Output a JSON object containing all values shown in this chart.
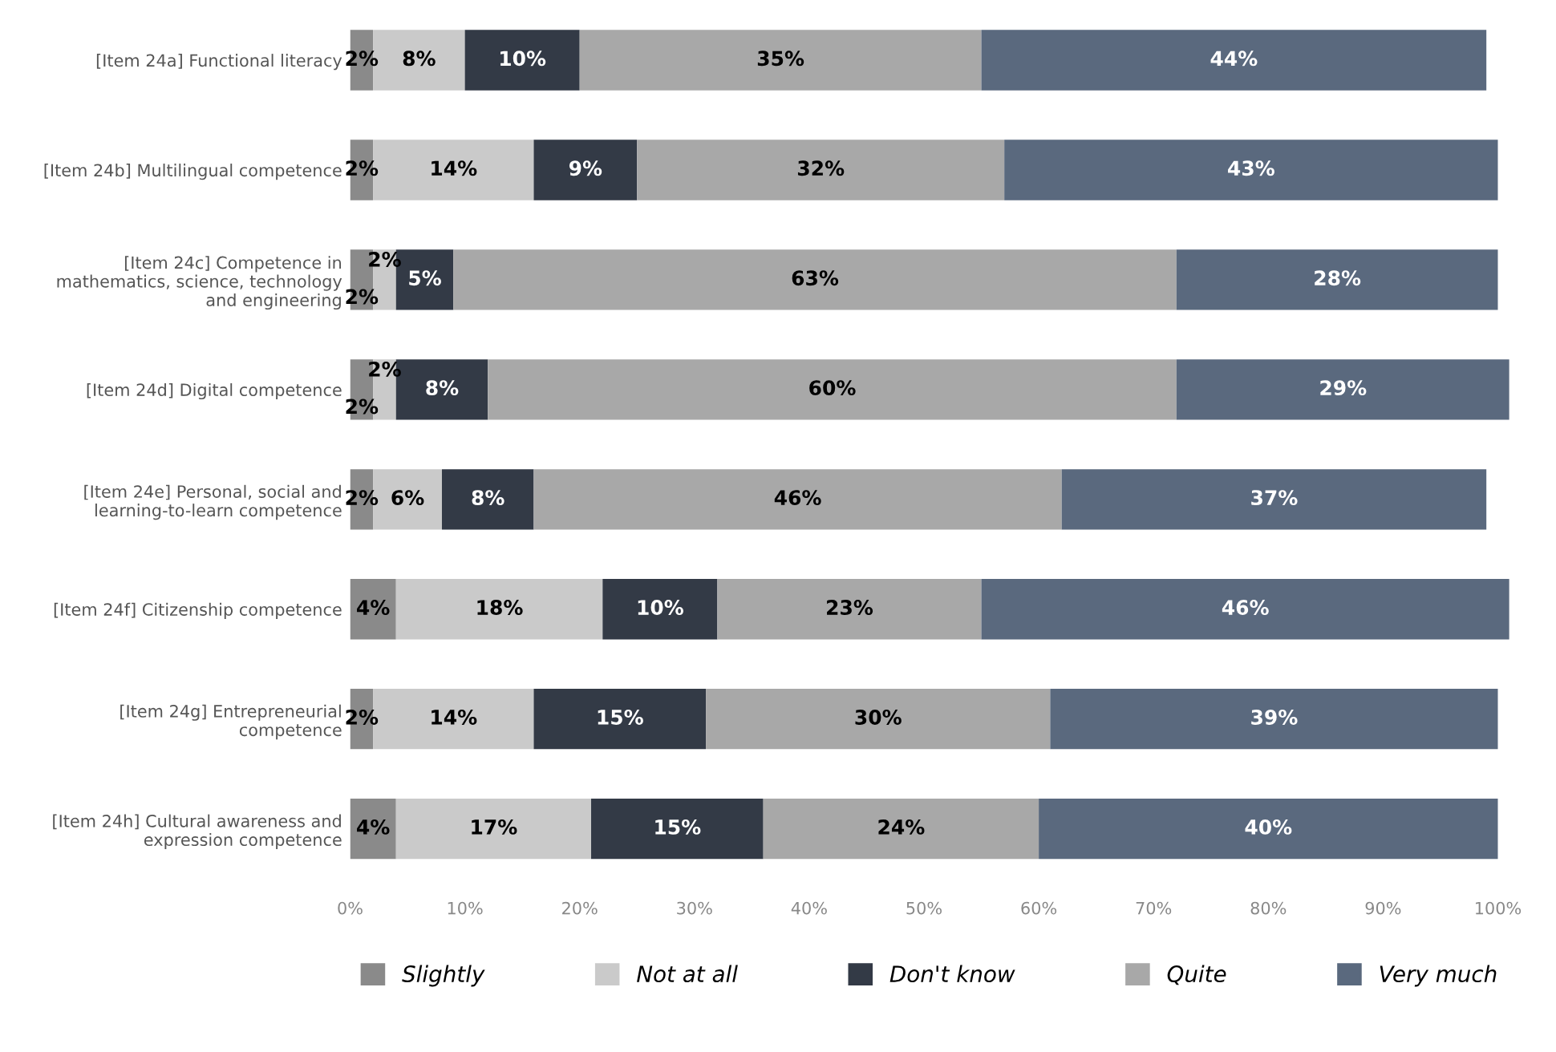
{
  "chart_data": {
    "type": "bar",
    "orientation": "horizontal",
    "stacked": true,
    "legend": "bottom",
    "grid": false,
    "categories": [
      "[Item 24a] Functional literacy",
      "[Item 24b] Multilingual competence",
      "[Item 24c] Competence in\nmathematics, science, technology\nand engineering",
      "[Item 24d] Digital competence",
      "[Item 24e] Personal, social and\nlearning-to-learn competence",
      "[Item 24f] Citizenship competence",
      "[Item 24g] Entrepreneurial\ncompetence",
      "[Item 24h] Cultural awareness and\nexpression competence"
    ],
    "xlim": [
      0,
      101
    ],
    "xticks": [
      {
        "value": 0,
        "label": "0%"
      },
      {
        "value": 10,
        "label": "10%"
      },
      {
        "value": 20,
        "label": "20%"
      },
      {
        "value": 30,
        "label": "30%"
      },
      {
        "value": 40,
        "label": "40%"
      },
      {
        "value": 50,
        "label": "50%"
      },
      {
        "value": 60,
        "label": "60%"
      },
      {
        "value": 70,
        "label": "70%"
      },
      {
        "value": 80,
        "label": "80%"
      },
      {
        "value": 90,
        "label": "90%"
      },
      {
        "value": 100,
        "label": "100%"
      }
    ],
    "series": [
      {
        "name": "Slightly",
        "color": "#8a8a8a",
        "values": [
          2,
          2,
          2,
          2,
          2,
          4,
          2,
          4
        ],
        "value_labels": [
          "2%",
          "2%",
          "2%",
          "2%",
          "2%",
          "4%",
          "2%",
          "4%"
        ]
      },
      {
        "name": "Not at all",
        "color": "#cacaca",
        "values": [
          8,
          14,
          2,
          2,
          6,
          18,
          14,
          17
        ],
        "value_labels": [
          "8%",
          "14%",
          "2%",
          "2%",
          "6%",
          "18%",
          "14%",
          "17%"
        ]
      },
      {
        "name": "Don't know",
        "color": "#333a46",
        "values": [
          10,
          9,
          5,
          8,
          8,
          10,
          15,
          15
        ],
        "value_labels": [
          "10%",
          "9%",
          "5%",
          "8%",
          "8%",
          "10%",
          "15%",
          "15%"
        ]
      },
      {
        "name": "Quite",
        "color": "#a8a8a8",
        "values": [
          35,
          32,
          63,
          60,
          46,
          23,
          30,
          24
        ],
        "value_labels": [
          "35%",
          "32%",
          "63%",
          "60%",
          "46%",
          "23%",
          "30%",
          "24%"
        ]
      },
      {
        "name": "Very much",
        "color": "#5a697e",
        "values": [
          44,
          43,
          28,
          29,
          37,
          46,
          39,
          40
        ],
        "value_labels": [
          "44%",
          "43%",
          "28%",
          "29%",
          "37%",
          "46%",
          "39%",
          "40%"
        ]
      }
    ]
  }
}
